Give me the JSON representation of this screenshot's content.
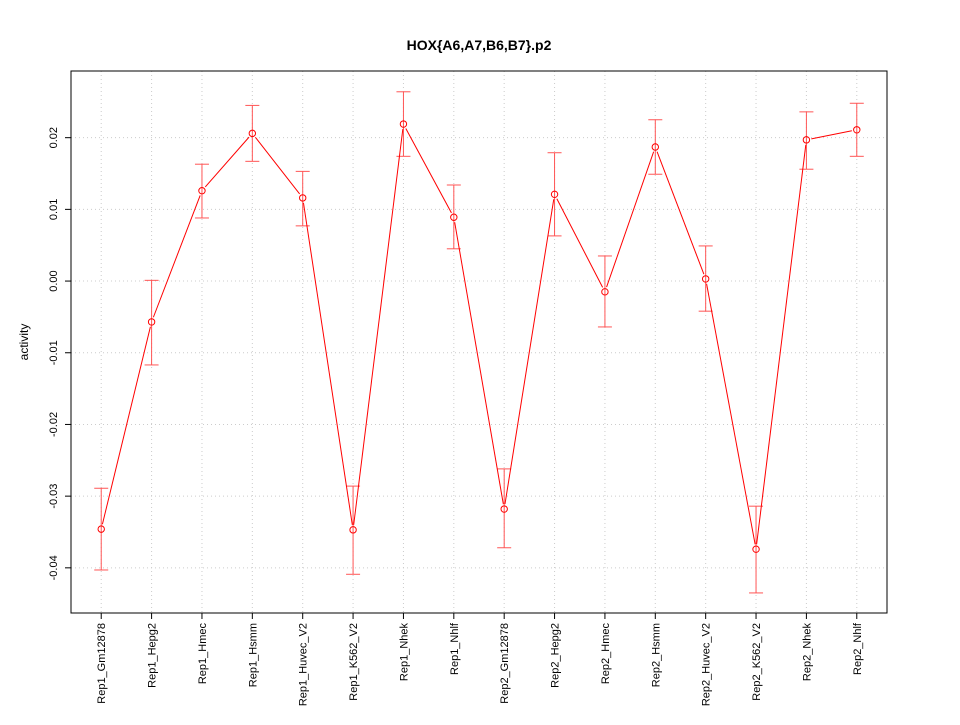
{
  "chart_data": {
    "type": "line",
    "title": "HOX{A6,A7,B6,B7}.p2",
    "xlabel": "",
    "ylabel": "activity",
    "ylim": [
      -0.0463,
      0.0293
    ],
    "grid": true,
    "yticks": [
      -0.04,
      -0.03,
      -0.02,
      -0.01,
      0.0,
      0.01,
      0.02
    ],
    "ytick_labels": [
      "-0.04",
      "-0.03",
      "-0.02",
      "-0.01",
      "0.00",
      "0.01",
      "0.02"
    ],
    "categories": [
      "Rep1_Gm12878",
      "Rep1_Hepg2",
      "Rep1_Hmec",
      "Rep1_Hsmm",
      "Rep1_Huvec_V2",
      "Rep1_K562_V2",
      "Rep1_Nhek",
      "Rep1_Nhlf",
      "Rep2_Gm12878",
      "Rep2_Hepg2",
      "Rep2_Hmec",
      "Rep2_Hsmm",
      "Rep2_Huvec_V2",
      "Rep2_K562_V2",
      "Rep2_Nhek",
      "Rep2_Nhlf"
    ],
    "values": [
      -0.0346,
      -0.0057,
      0.0126,
      0.0206,
      0.0116,
      -0.0347,
      0.0219,
      0.0089,
      -0.0318,
      0.0121,
      -0.0015,
      0.0187,
      0.0003,
      -0.0374,
      0.0197,
      0.0211
    ],
    "upper": [
      -0.0289,
      0.0001,
      0.0163,
      0.0245,
      0.0153,
      -0.0286,
      0.0264,
      0.0134,
      -0.0262,
      0.0179,
      0.0035,
      0.0225,
      0.0049,
      -0.0314,
      0.0236,
      0.0248
    ],
    "lower": [
      -0.0403,
      -0.0117,
      0.0088,
      0.0167,
      0.0077,
      -0.0409,
      0.0174,
      0.0045,
      -0.0372,
      0.0063,
      -0.0064,
      0.0149,
      -0.0042,
      -0.0435,
      0.0156,
      0.0174
    ],
    "colors": {
      "line": "#ff0000",
      "errorbar": "#ff5555",
      "grid": "#cccccc",
      "axis": "#000000"
    }
  }
}
